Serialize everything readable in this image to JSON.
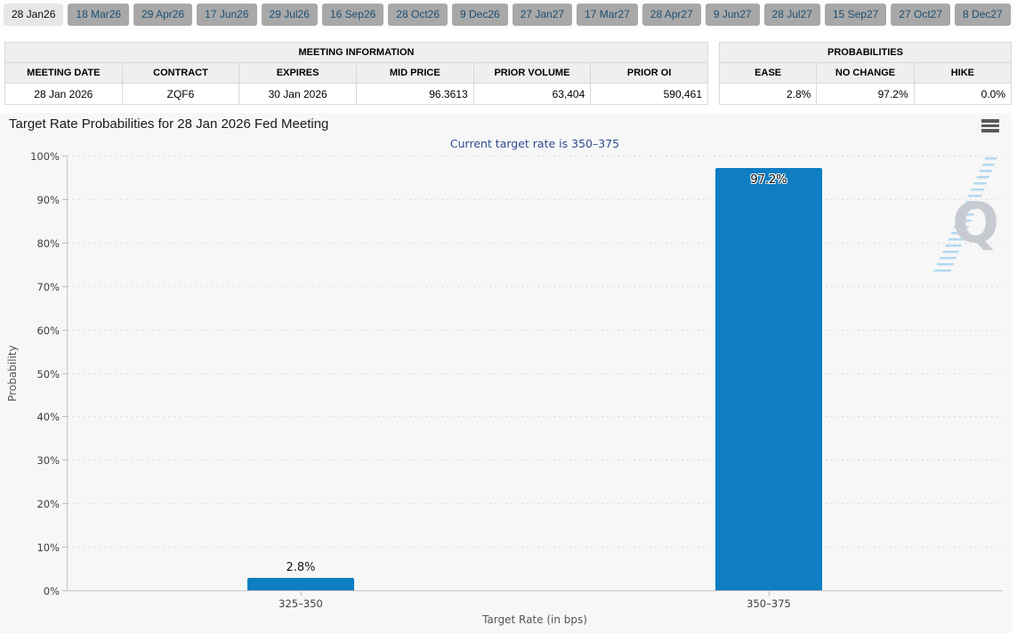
{
  "tabs": {
    "active": "28 Jan26",
    "items": [
      "28 Jan26",
      "18 Mar26",
      "29 Apr26",
      "17 Jun26",
      "29 Jul26",
      "16 Sep26",
      "28 Oct26",
      "9 Dec26",
      "27 Jan27",
      "17 Mar27",
      "28 Apr27",
      "9 Jun27",
      "28 Jul27",
      "15 Sep27",
      "27 Oct27",
      "8 Dec27"
    ]
  },
  "meeting_info": {
    "title": "MEETING INFORMATION",
    "columns": [
      "MEETING DATE",
      "CONTRACT",
      "EXPIRES",
      "MID PRICE",
      "PRIOR VOLUME",
      "PRIOR OI"
    ],
    "row": [
      "28 Jan 2026",
      "ZQF6",
      "30 Jan 2026",
      "96.3613",
      "63,404",
      "590,461"
    ]
  },
  "probabilities": {
    "title": "PROBABILITIES",
    "columns": [
      "EASE",
      "NO CHANGE",
      "HIKE"
    ],
    "row": [
      "2.8%",
      "97.2%",
      "0.0%"
    ]
  },
  "chart_data": {
    "type": "bar",
    "title": "Target Rate Probabilities for 28 Jan 2026 Fed Meeting",
    "subtitle": "Current target rate is 350–375",
    "categories": [
      "325–350",
      "350–375"
    ],
    "values": [
      2.8,
      97.2
    ],
    "value_labels": [
      "2.8%",
      "97.2%"
    ],
    "xlabel": "Target Rate (in bps)",
    "ylabel": "Probability",
    "ylim": [
      0,
      100
    ],
    "ytick_step": 10,
    "ytick_suffix": "%",
    "grid": "dotted-horizontal",
    "legend": "none",
    "bar_color": "#0e7dc2"
  },
  "icons": {
    "menu": "hamburger-menu",
    "watermark_letter": "Q"
  },
  "colors": {
    "bar": "#0e7dc2",
    "subtitle_text": "#2e4b8f",
    "tab_active_bg": "#e7e7e7",
    "tab_inactive_bg": "#a8a8a8",
    "tab_inactive_text": "#1b4f72",
    "panel_bg": "#f7f7f7"
  }
}
